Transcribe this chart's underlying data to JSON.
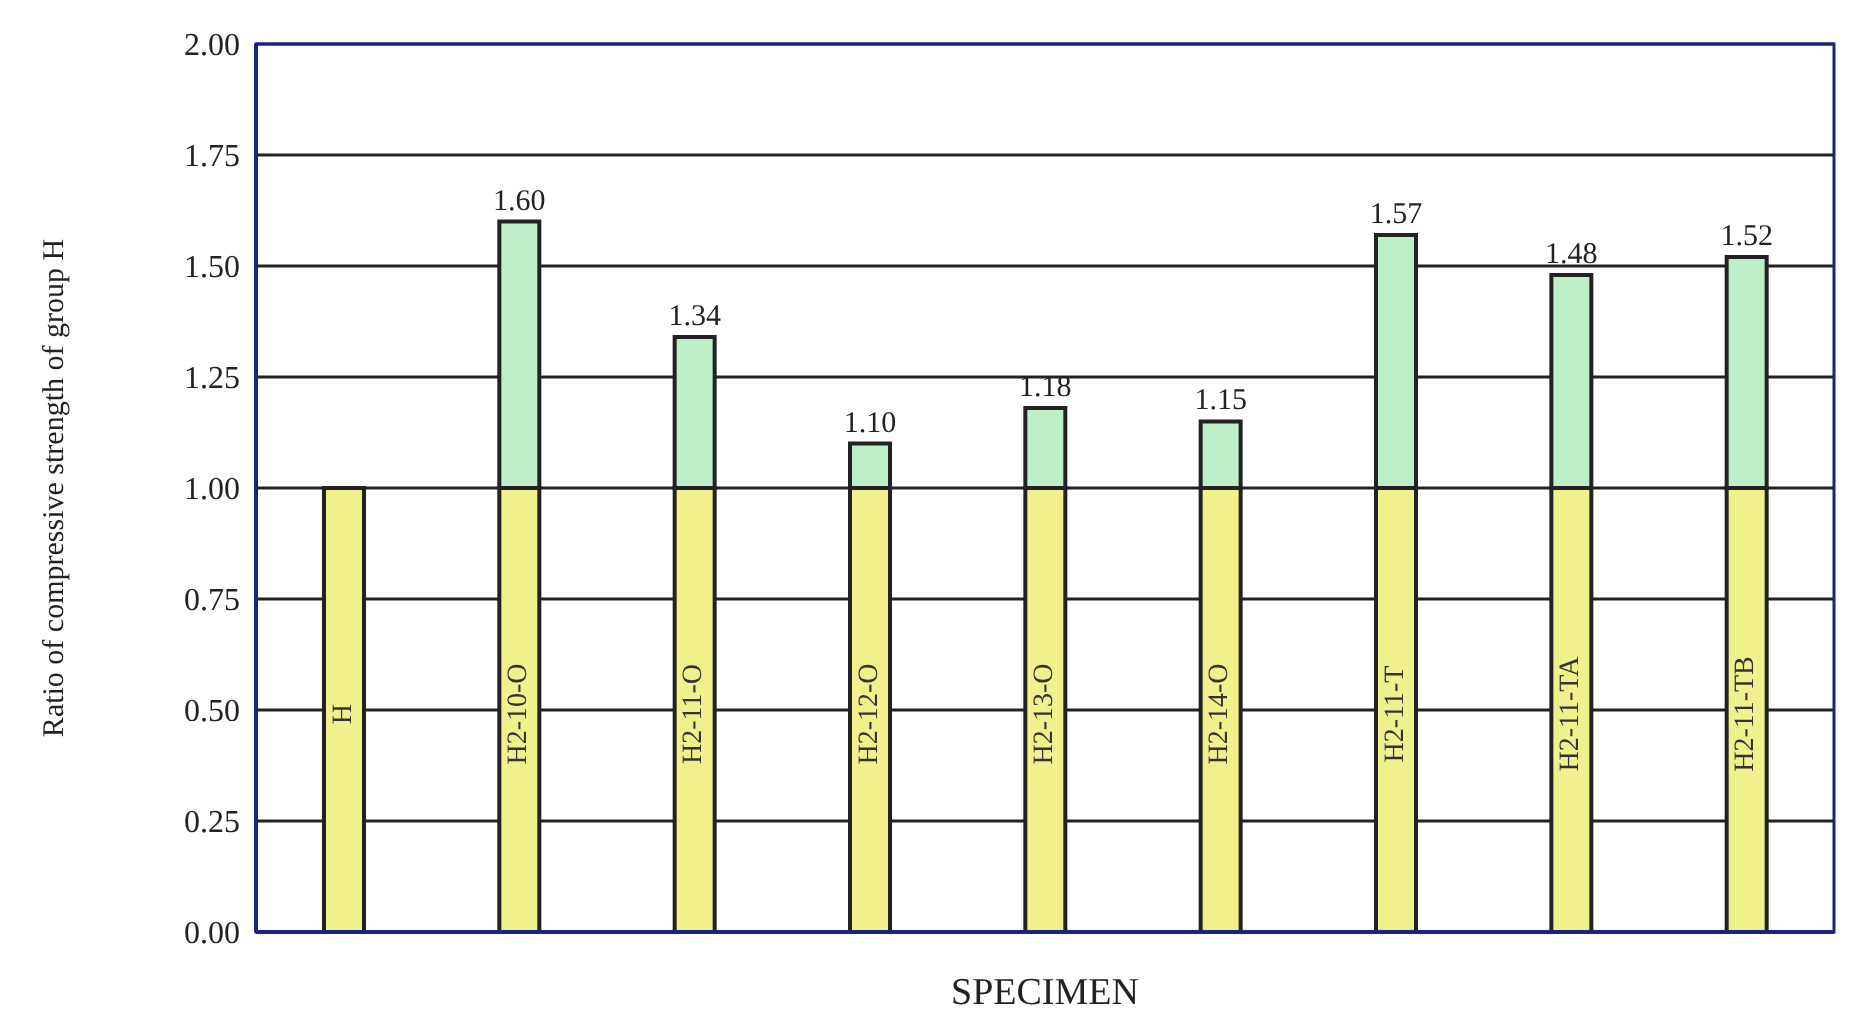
{
  "chart_data": {
    "type": "bar",
    "stacked": true,
    "xlabel": "SPECIMEN",
    "ylabel": "Ratio of compressive strength of group H",
    "categories": [
      "H",
      "H2-10-O",
      "H2-11-O",
      "H2-12-O",
      "H2-13-O",
      "H2-14-O",
      "H2-11-T",
      "H2-11-TA",
      "H2-11-TB"
    ],
    "series": [
      {
        "color": "#f0f08c",
        "values": [
          1,
          1,
          1,
          1,
          1,
          1,
          1,
          1,
          1
        ]
      },
      {
        "color": "#bfefc8",
        "values": [
          null,
          0.6,
          0.34,
          0.1,
          0.18,
          0.15,
          0.57,
          0.48,
          0.52
        ]
      }
    ],
    "totals": [
      null,
      "1.60",
      "1.34",
      "1.10",
      "1.18",
      "1.15",
      "1.57",
      "1.48",
      "1.52"
    ],
    "ylim": [
      0,
      2
    ],
    "yticks": [
      {
        "value": 0,
        "label": "0.00"
      },
      {
        "value": 0.25,
        "label": "0.25"
      },
      {
        "value": 0.5,
        "label": "0.50"
      },
      {
        "value": 0.75,
        "label": "0.75"
      },
      {
        "value": 1,
        "label": "1.00"
      },
      {
        "value": 1.25,
        "label": "1.25"
      },
      {
        "value": 1.5,
        "label": "1.50"
      },
      {
        "value": 1.75,
        "label": "1.75"
      },
      {
        "value": 2,
        "label": "2.00"
      }
    ],
    "grid": "y",
    "legend": false
  }
}
